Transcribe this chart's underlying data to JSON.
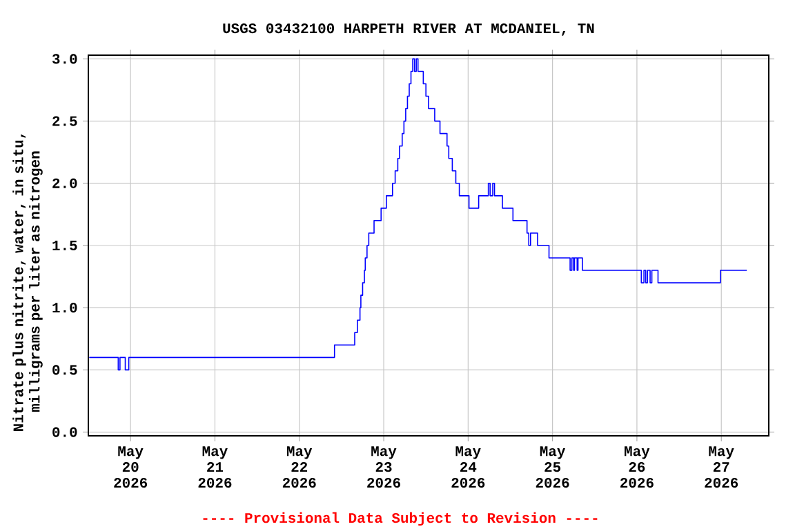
{
  "chart_data": {
    "type": "step",
    "title": "USGS 03432100 HARPETH RIVER AT MCDANIEL, TN",
    "ylabel": "Nitrate plus nitrite, water, in situ, milligrams per liter as nitrogen",
    "annotations": [
      "---- Provisional Data Subject to Revision ----"
    ],
    "x": [
      "2026-05-19T12:15",
      "2026-05-19T20:30",
      "2026-05-19T21:00",
      "2026-05-19T22:30",
      "2026-05-19T23:30",
      "2026-05-22T10:00",
      "2026-05-22T15:45",
      "2026-05-22T16:30",
      "2026-05-22T17:15",
      "2026-05-22T17:30",
      "2026-05-22T18:00",
      "2026-05-22T18:30",
      "2026-05-22T18:45",
      "2026-05-22T19:15",
      "2026-05-22T19:45",
      "2026-05-22T21:15",
      "2026-05-22T23:15",
      "2026-05-23T00:45",
      "2026-05-23T02:30",
      "2026-05-23T03:15",
      "2026-05-23T04:00",
      "2026-05-23T04:30",
      "2026-05-23T05:15",
      "2026-05-23T05:45",
      "2026-05-23T06:15",
      "2026-05-23T06:45",
      "2026-05-23T07:15",
      "2026-05-23T07:45",
      "2026-05-23T08:15",
      "2026-05-23T08:45",
      "2026-05-23T09:15",
      "2026-05-23T09:45",
      "2026-05-23T11:15",
      "2026-05-23T12:00",
      "2026-05-23T12:45",
      "2026-05-23T14:30",
      "2026-05-23T16:00",
      "2026-05-23T18:00",
      "2026-05-23T18:30",
      "2026-05-23T19:30",
      "2026-05-23T20:30",
      "2026-05-23T21:30",
      "2026-05-24T00:15",
      "2026-05-24T03:00",
      "2026-05-24T05:45",
      "2026-05-24T06:15",
      "2026-05-24T07:00",
      "2026-05-24T07:30",
      "2026-05-24T09:45",
      "2026-05-24T12:45",
      "2026-05-24T16:45",
      "2026-05-24T17:15",
      "2026-05-24T17:45",
      "2026-05-24T19:45",
      "2026-05-24T23:00",
      "2026-05-25T05:00",
      "2026-05-25T05:30",
      "2026-05-25T06:00",
      "2026-05-25T06:15",
      "2026-05-25T07:00",
      "2026-05-25T07:15",
      "2026-05-25T08:30",
      "2026-05-26T01:15",
      "2026-05-26T02:00",
      "2026-05-26T02:30",
      "2026-05-26T03:00",
      "2026-05-26T03:45",
      "2026-05-26T04:15",
      "2026-05-26T06:00",
      "2026-05-26T23:45",
      "2026-05-27T07:15"
    ],
    "series": [
      {
        "color": "#0000ff",
        "values": [
          0.6,
          0.5,
          0.6,
          0.5,
          0.6,
          0.7,
          0.8,
          0.9,
          1.0,
          1.1,
          1.2,
          1.3,
          1.4,
          1.5,
          1.6,
          1.7,
          1.8,
          1.9,
          2.0,
          2.1,
          2.2,
          2.3,
          2.4,
          2.5,
          2.6,
          2.7,
          2.8,
          2.9,
          3.0,
          2.9,
          3.0,
          2.9,
          2.8,
          2.7,
          2.6,
          2.5,
          2.4,
          2.3,
          2.2,
          2.1,
          2.0,
          1.9,
          1.8,
          1.9,
          2.0,
          1.9,
          2.0,
          1.9,
          1.8,
          1.7,
          1.6,
          1.5,
          1.6,
          1.5,
          1.4,
          1.3,
          1.4,
          1.3,
          1.4,
          1.3,
          1.4,
          1.3,
          1.2,
          1.3,
          1.2,
          1.3,
          1.2,
          1.3,
          1.2,
          1.3,
          1.3
        ]
      }
    ],
    "xlim": [
      "2026-05-19T12:00",
      "2026-05-27T13:30"
    ],
    "xticks": [
      {
        "value": "2026-05-20",
        "label": "May 20 2026"
      },
      {
        "value": "2026-05-21",
        "label": "May 21 2026"
      },
      {
        "value": "2026-05-22",
        "label": "May 22 2026"
      },
      {
        "value": "2026-05-23",
        "label": "May 23 2026"
      },
      {
        "value": "2026-05-24",
        "label": "May 24 2026"
      },
      {
        "value": "2026-05-25",
        "label": "May 25 2026"
      },
      {
        "value": "2026-05-26",
        "label": "May 26 2026"
      },
      {
        "value": "2026-05-27",
        "label": "May 27 2026"
      }
    ],
    "ylim": [
      -0.03,
      3.03
    ],
    "yticks": [
      {
        "value": 0,
        "label": "0.0"
      },
      {
        "value": 0.5,
        "label": "0.5"
      },
      {
        "value": 1,
        "label": "1.0"
      },
      {
        "value": 1.5,
        "label": "1.5"
      },
      {
        "value": 2,
        "label": "2.0"
      },
      {
        "value": 2.5,
        "label": "2.5"
      },
      {
        "value": 3,
        "label": "3.0"
      }
    ],
    "grid": true
  }
}
